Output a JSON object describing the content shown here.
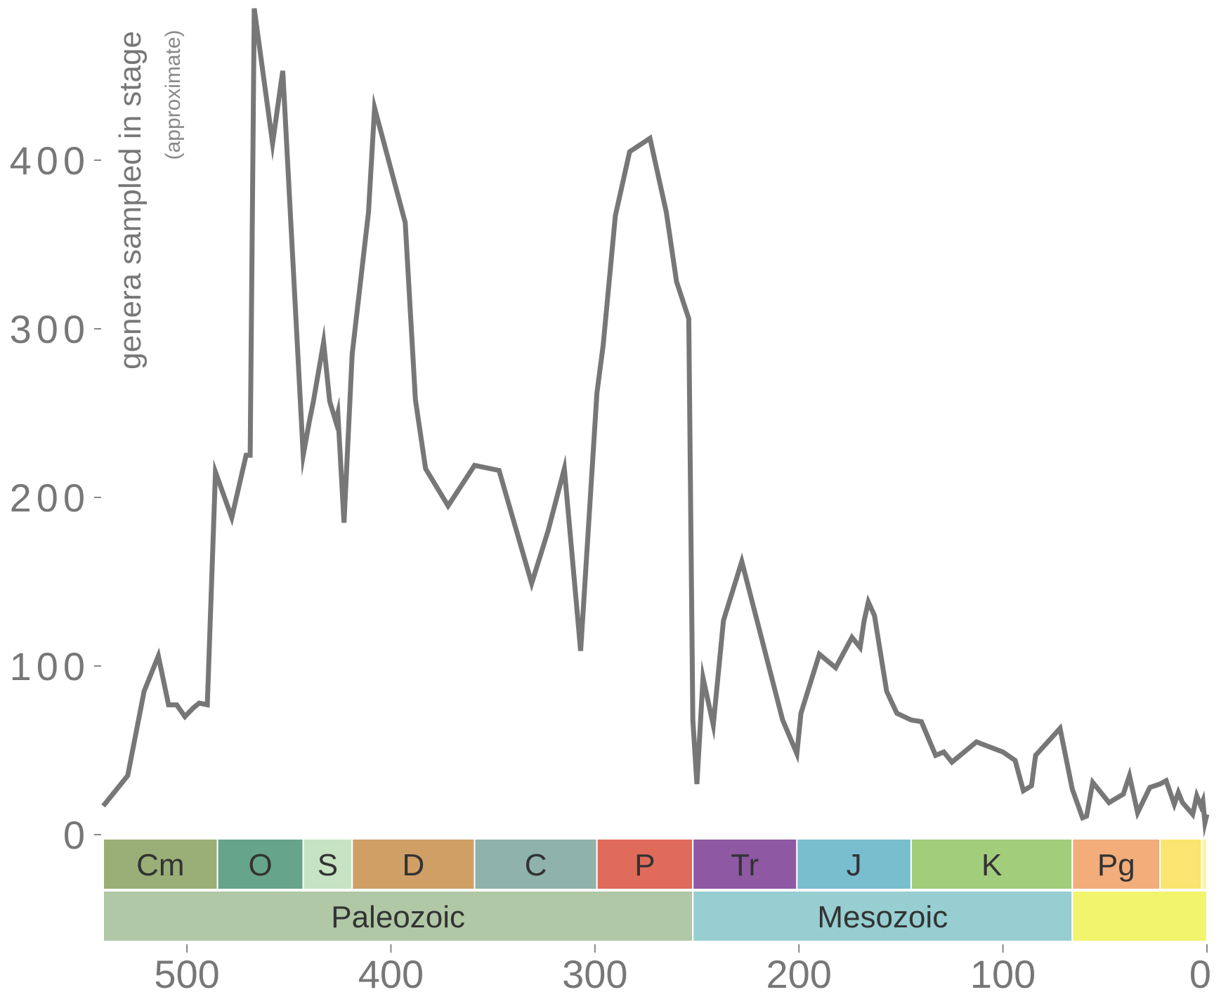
{
  "chart_data": {
    "type": "line",
    "ylabel": "genera sampled in stage",
    "ylabel_note": "(approximate)",
    "xlim": [
      541,
      0
    ],
    "ylim": [
      0,
      490
    ],
    "x_axis_reversed": true,
    "x_ticks": [
      500,
      400,
      300,
      200,
      100,
      0
    ],
    "y_ticks": [
      0,
      100,
      200,
      300,
      400
    ],
    "line_color": "#777777",
    "series": [
      {
        "values": [
          [
            541,
            17
          ],
          [
            529,
            35
          ],
          [
            521,
            85
          ],
          [
            514,
            106
          ],
          [
            509,
            77
          ],
          [
            505,
            77
          ],
          [
            501,
            70
          ],
          [
            497,
            75
          ],
          [
            494,
            78
          ],
          [
            490,
            77
          ],
          [
            486,
            215
          ],
          [
            478,
            188
          ],
          [
            471,
            225
          ],
          [
            469,
            225
          ],
          [
            467,
            490
          ],
          [
            458,
            410
          ],
          [
            453,
            453
          ],
          [
            443,
            225
          ],
          [
            440,
            245
          ],
          [
            438,
            257
          ],
          [
            433,
            292
          ],
          [
            430,
            257
          ],
          [
            427,
            245
          ],
          [
            426,
            250
          ],
          [
            423,
            185
          ],
          [
            419,
            285
          ],
          [
            411,
            369
          ],
          [
            408,
            431
          ],
          [
            393,
            363
          ],
          [
            388,
            258
          ],
          [
            383,
            217
          ],
          [
            372,
            195
          ],
          [
            359,
            219
          ],
          [
            347,
            216
          ],
          [
            331,
            149
          ],
          [
            323,
            180
          ],
          [
            315,
            217
          ],
          [
            307,
            109
          ],
          [
            299,
            262
          ],
          [
            296,
            290
          ],
          [
            290,
            367
          ],
          [
            283,
            405
          ],
          [
            273,
            413
          ],
          [
            265,
            369
          ],
          [
            260,
            328
          ],
          [
            254,
            306
          ],
          [
            252,
            68
          ],
          [
            250,
            30
          ],
          [
            247,
            93
          ],
          [
            242,
            65
          ],
          [
            237,
            127
          ],
          [
            228,
            162
          ],
          [
            208,
            68
          ],
          [
            201,
            48
          ],
          [
            199,
            72
          ],
          [
            190,
            107
          ],
          [
            182,
            99
          ],
          [
            174,
            117
          ],
          [
            170,
            111
          ],
          [
            168,
            127
          ],
          [
            166,
            138
          ],
          [
            163,
            130
          ],
          [
            157,
            85
          ],
          [
            152,
            72
          ],
          [
            145,
            68
          ],
          [
            140,
            67
          ],
          [
            133,
            47
          ],
          [
            129,
            49
          ],
          [
            125,
            43
          ],
          [
            113,
            55
          ],
          [
            100,
            49
          ],
          [
            94,
            44
          ],
          [
            90,
            26
          ],
          [
            86,
            29
          ],
          [
            84,
            47
          ],
          [
            72,
            63
          ],
          [
            66,
            27
          ],
          [
            61,
            10
          ],
          [
            59,
            11
          ],
          [
            56,
            31
          ],
          [
            48,
            19
          ],
          [
            41,
            24
          ],
          [
            38,
            35
          ],
          [
            34,
            13
          ],
          [
            28,
            28
          ],
          [
            23,
            30
          ],
          [
            20,
            32
          ],
          [
            16,
            18
          ],
          [
            14,
            25
          ],
          [
            12,
            19
          ],
          [
            7,
            12
          ],
          [
            5,
            23
          ],
          [
            3,
            17
          ],
          [
            2,
            20
          ],
          [
            1,
            7
          ],
          [
            0,
            12
          ]
        ]
      }
    ],
    "periods": [
      {
        "label": "Cm",
        "start": 541,
        "end": 485,
        "color": "#9aaf78"
      },
      {
        "label": "O",
        "start": 485,
        "end": 443,
        "color": "#66a58b"
      },
      {
        "label": "S",
        "start": 443,
        "end": 419,
        "color": "#c6e3c3"
      },
      {
        "label": "D",
        "start": 419,
        "end": 359,
        "color": "#cf9f66"
      },
      {
        "label": "C",
        "start": 359,
        "end": 299,
        "color": "#8fb3aa"
      },
      {
        "label": "P",
        "start": 299,
        "end": 252,
        "color": "#e06b5b"
      },
      {
        "label": "Tr",
        "start": 252,
        "end": 201,
        "color": "#8e58a3"
      },
      {
        "label": "J",
        "start": 201,
        "end": 145,
        "color": "#78becf"
      },
      {
        "label": "K",
        "start": 145,
        "end": 66,
        "color": "#a2cd7a"
      },
      {
        "label": "Pg",
        "start": 66,
        "end": 23,
        "color": "#f2ad7b"
      },
      {
        "label": "",
        "start": 23,
        "end": 2.6,
        "color": "#fbe46f"
      },
      {
        "label": "",
        "start": 2.6,
        "end": 0,
        "color": "#fdf3a3"
      }
    ],
    "eras": [
      {
        "label": "Paleozoic",
        "start": 541,
        "end": 252,
        "color": "#b0c8a6"
      },
      {
        "label": "Mesozoic",
        "start": 252,
        "end": 66,
        "color": "#96ced1"
      },
      {
        "label": "",
        "start": 66,
        "end": 0,
        "color": "#f1f46c"
      }
    ]
  }
}
